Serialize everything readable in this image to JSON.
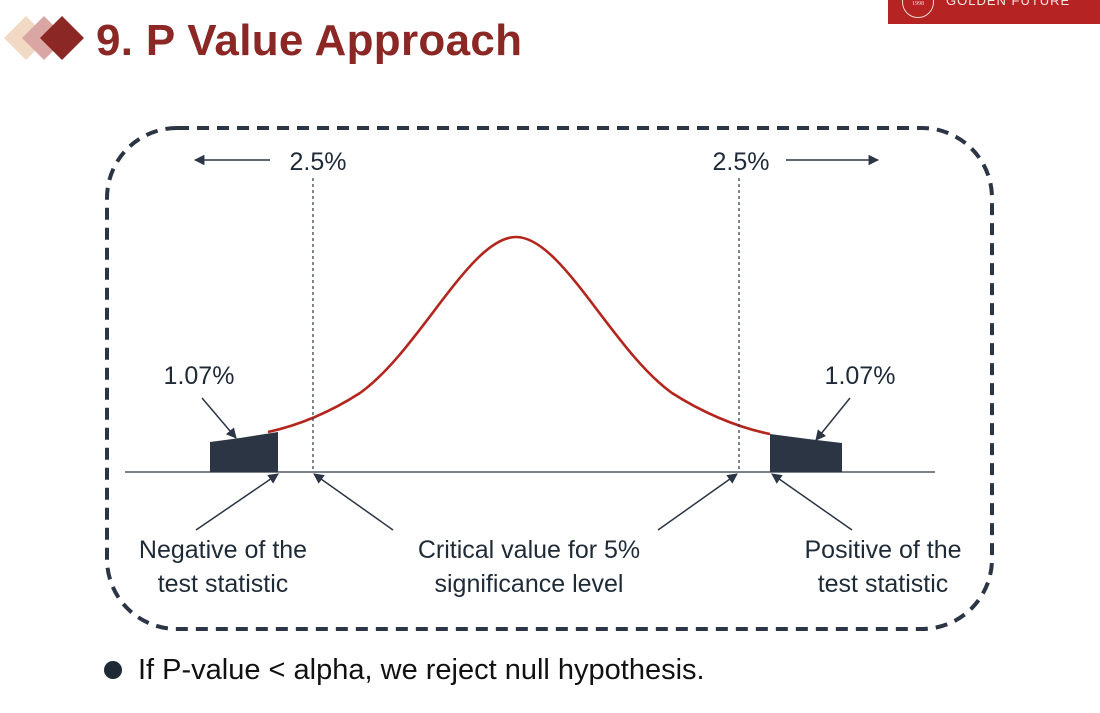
{
  "slide": {
    "title": "9. P Value Approach",
    "bullet": "If P-value < alpha, we reject null hypothesis.",
    "logo_text": "GOLDEN FUTURE",
    "logo_seal_text": "1998"
  },
  "diagram": {
    "labels": {
      "left_tail_percent": "2.5%",
      "right_tail_percent": "2.5%",
      "left_pvalue_percent": "1.07%",
      "right_pvalue_percent": "1.07%",
      "negative_stat_line1": "Negative of the",
      "negative_stat_line2": "test statistic",
      "critical_line1": "Critical value for 5%",
      "critical_line2": "significance level",
      "positive_stat_line1": "Positive of the",
      "positive_stat_line2": "test statistic"
    },
    "colors": {
      "curve": "#b3261e",
      "shaded_area": "#2b3544",
      "border": "#2b3544",
      "title": "#8b2724",
      "accent_diamonds": [
        "#f2d9c4",
        "#d9a6a4",
        "#8b2724"
      ]
    }
  }
}
